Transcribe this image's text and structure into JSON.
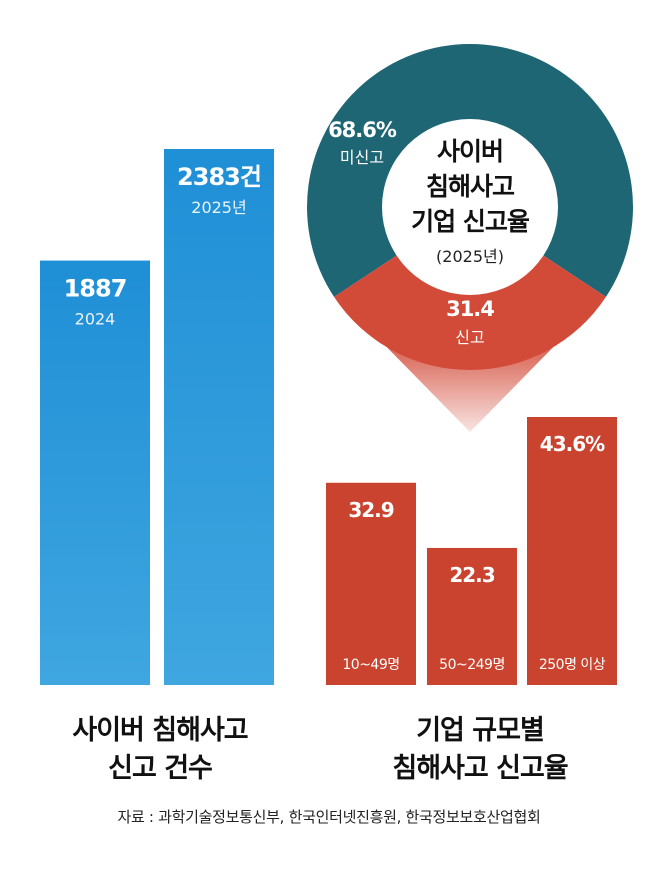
{
  "chart_data": [
    {
      "type": "bar",
      "categories": [
        "2024",
        "2025년"
      ],
      "values": [
        1887,
        2383
      ],
      "value_labels": [
        "1887",
        "2383건"
      ],
      "title": "사이버 침해사고 신고 건수",
      "title_lines": [
        "사이버 침해사고",
        "신고 건수"
      ],
      "color": "#2f97d6"
    },
    {
      "type": "pie",
      "title_lines": [
        "사이버",
        "침해사고",
        "기업 신고율",
        "(2025년)"
      ],
      "slices": [
        {
          "label": "미신고",
          "value": 68.6,
          "value_label": "68.6%",
          "color": "#1e6673"
        },
        {
          "label": "신고",
          "value": 31.4,
          "value_label": "31.4",
          "color": "#d24a38"
        }
      ]
    },
    {
      "type": "bar",
      "title": "기업 규모별 침해사고 신고율",
      "title_lines": [
        "기업 규모별",
        "침해사고 신고율"
      ],
      "categories": [
        "10~49명",
        "50~249명",
        "250명 이상"
      ],
      "values": [
        32.9,
        22.3,
        43.6
      ],
      "value_labels": [
        "32.9",
        "22.3",
        "43.6%"
      ],
      "color": "#c9432f"
    }
  ],
  "source": "자료 : 과학기술정보통신부, 한국인터넷진흥원, 한국정보보호산업협회"
}
